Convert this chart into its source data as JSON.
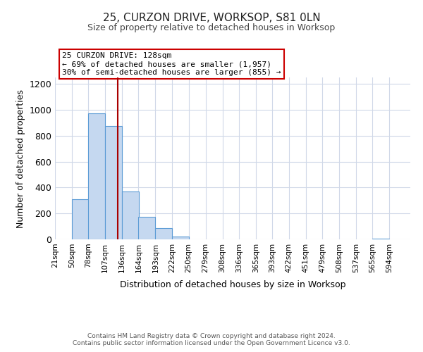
{
  "title": "25, CURZON DRIVE, WORKSOP, S81 0LN",
  "subtitle": "Size of property relative to detached houses in Worksop",
  "xlabel": "Distribution of detached houses by size in Worksop",
  "ylabel": "Number of detached properties",
  "bin_labels": [
    "21sqm",
    "50sqm",
    "78sqm",
    "107sqm",
    "136sqm",
    "164sqm",
    "193sqm",
    "222sqm",
    "250sqm",
    "279sqm",
    "308sqm",
    "336sqm",
    "365sqm",
    "393sqm",
    "422sqm",
    "451sqm",
    "479sqm",
    "508sqm",
    "537sqm",
    "565sqm",
    "594sqm"
  ],
  "bin_edges": [
    21,
    50,
    78,
    107,
    136,
    164,
    193,
    222,
    250,
    279,
    308,
    336,
    365,
    393,
    422,
    451,
    479,
    508,
    537,
    565,
    594
  ],
  "bar_heights": [
    0,
    310,
    975,
    875,
    370,
    175,
    85,
    22,
    0,
    0,
    0,
    0,
    0,
    0,
    0,
    0,
    0,
    0,
    0,
    6,
    0
  ],
  "bar_color": "#c5d8f0",
  "bar_edge_color": "#5b9bd5",
  "vline_x": 128,
  "vline_color": "#aa0000",
  "ylim": [
    0,
    1250
  ],
  "yticks": [
    0,
    200,
    400,
    600,
    800,
    1000,
    1200
  ],
  "annotation_title": "25 CURZON DRIVE: 128sqm",
  "annotation_line1": "← 69% of detached houses are smaller (1,957)",
  "annotation_line2": "30% of semi-detached houses are larger (855) →",
  "annotation_box_color": "#ffffff",
  "annotation_border_color": "#cc0000",
  "footer_line1": "Contains HM Land Registry data © Crown copyright and database right 2024.",
  "footer_line2": "Contains public sector information licensed under the Open Government Licence v3.0.",
  "background_color": "#ffffff",
  "grid_color": "#d0d8e8"
}
